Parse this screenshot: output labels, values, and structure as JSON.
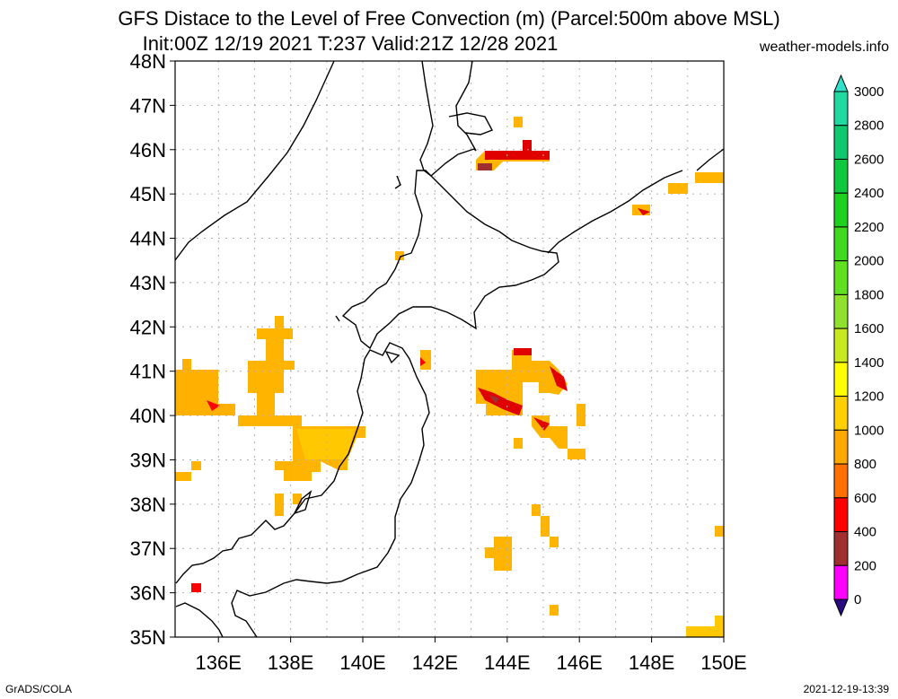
{
  "header": {
    "title_line1": "GFS Distace to the Level of Free Convection (m) (Parcel:500m above MSL)",
    "title_line2": "Init:00Z 12/19 2021 T:237 Valid:21Z 12/28 2021",
    "credit": "weather-models.info"
  },
  "footer": {
    "left": "GrADS/COLA",
    "right": "2021-12-19-13:39"
  },
  "map": {
    "lon_labels": [
      "136E",
      "138E",
      "140E",
      "142E",
      "144E",
      "146E",
      "148E",
      "150E"
    ],
    "lat_labels": [
      "48N",
      "47N",
      "46N",
      "45N",
      "44N",
      "43N",
      "42N",
      "41N",
      "40N",
      "39N",
      "38N",
      "37N",
      "36N",
      "35N"
    ],
    "lon_range": [
      134.8,
      150
    ],
    "lat_range": [
      35,
      48
    ]
  },
  "colorbar": {
    "labels": [
      "3000",
      "2800",
      "2600",
      "2400",
      "2200",
      "2000",
      "1800",
      "1600",
      "1400",
      "1200",
      "1000",
      "800",
      "600",
      "400",
      "200",
      "0"
    ],
    "colors": [
      "#30e0c8",
      "#20d8a0",
      "#10c870",
      "#10c840",
      "#20d020",
      "#40d820",
      "#60e020",
      "#90e030",
      "#c8e820",
      "#ffff00",
      "#ffd000",
      "#ffa800",
      "#ff7000",
      "#ff0000",
      "#a03030",
      "#ff00ff",
      "#2a0a80"
    ]
  }
}
